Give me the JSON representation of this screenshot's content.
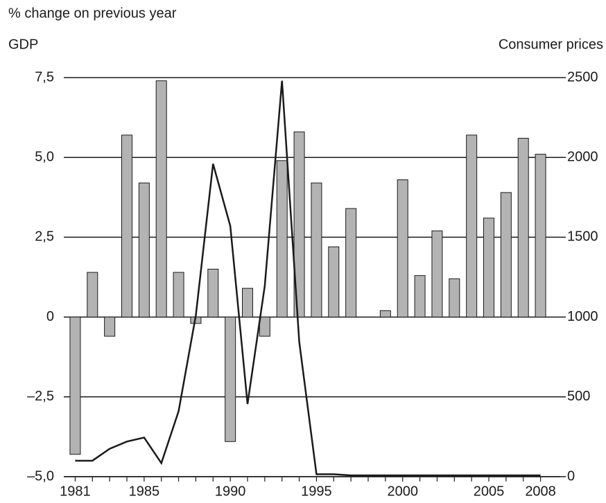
{
  "chart_data": {
    "type": "combo",
    "title": "% change on previous year",
    "ylabel": "GDP",
    "y2label": "Consumer prices",
    "categories": [
      "1981",
      null,
      null,
      null,
      "1985",
      null,
      null,
      null,
      null,
      "1990",
      null,
      null,
      null,
      null,
      "1995",
      null,
      null,
      null,
      null,
      "2000",
      null,
      null,
      null,
      null,
      "2005",
      null,
      null,
      "2008"
    ],
    "series": [
      {
        "type": "bar",
        "axis": "y",
        "color": "#b3b3b3",
        "values": [
          -4.3,
          1.4,
          -0.6,
          5.7,
          4.2,
          7.4,
          1.4,
          -0.2,
          1.5,
          -3.9,
          0.9,
          -0.6,
          4.9,
          5.8,
          4.2,
          2.2,
          3.4,
          null,
          0.2,
          4.3,
          1.3,
          2.7,
          1.2,
          5.7,
          3.1,
          3.9,
          5.6,
          5.1
        ]
      },
      {
        "type": "line",
        "axis": "y2",
        "color": "#1a1a1a",
        "values": [
          100,
          100,
          175,
          220,
          245,
          85,
          410,
          1010,
          1960,
          1570,
          455,
          1195,
          2480,
          845,
          15,
          15,
          8,
          8,
          8,
          8,
          8,
          8,
          8,
          8,
          8,
          8,
          8,
          8
        ]
      }
    ],
    "ylim": [
      -5,
      7.5
    ],
    "yticks": [
      {
        "value": -5,
        "label": "–5,0"
      },
      {
        "value": -2.5,
        "label": "–2,5"
      },
      0,
      {
        "value": 2.5,
        "label": "2,5"
      },
      {
        "value": 5,
        "label": "5,0"
      },
      {
        "value": 7.5,
        "label": "7,5"
      }
    ],
    "y2lim": [
      0,
      2500
    ],
    "y2ticks": [
      0,
      500,
      1000,
      1500,
      2000,
      2500
    ],
    "grid": true
  }
}
